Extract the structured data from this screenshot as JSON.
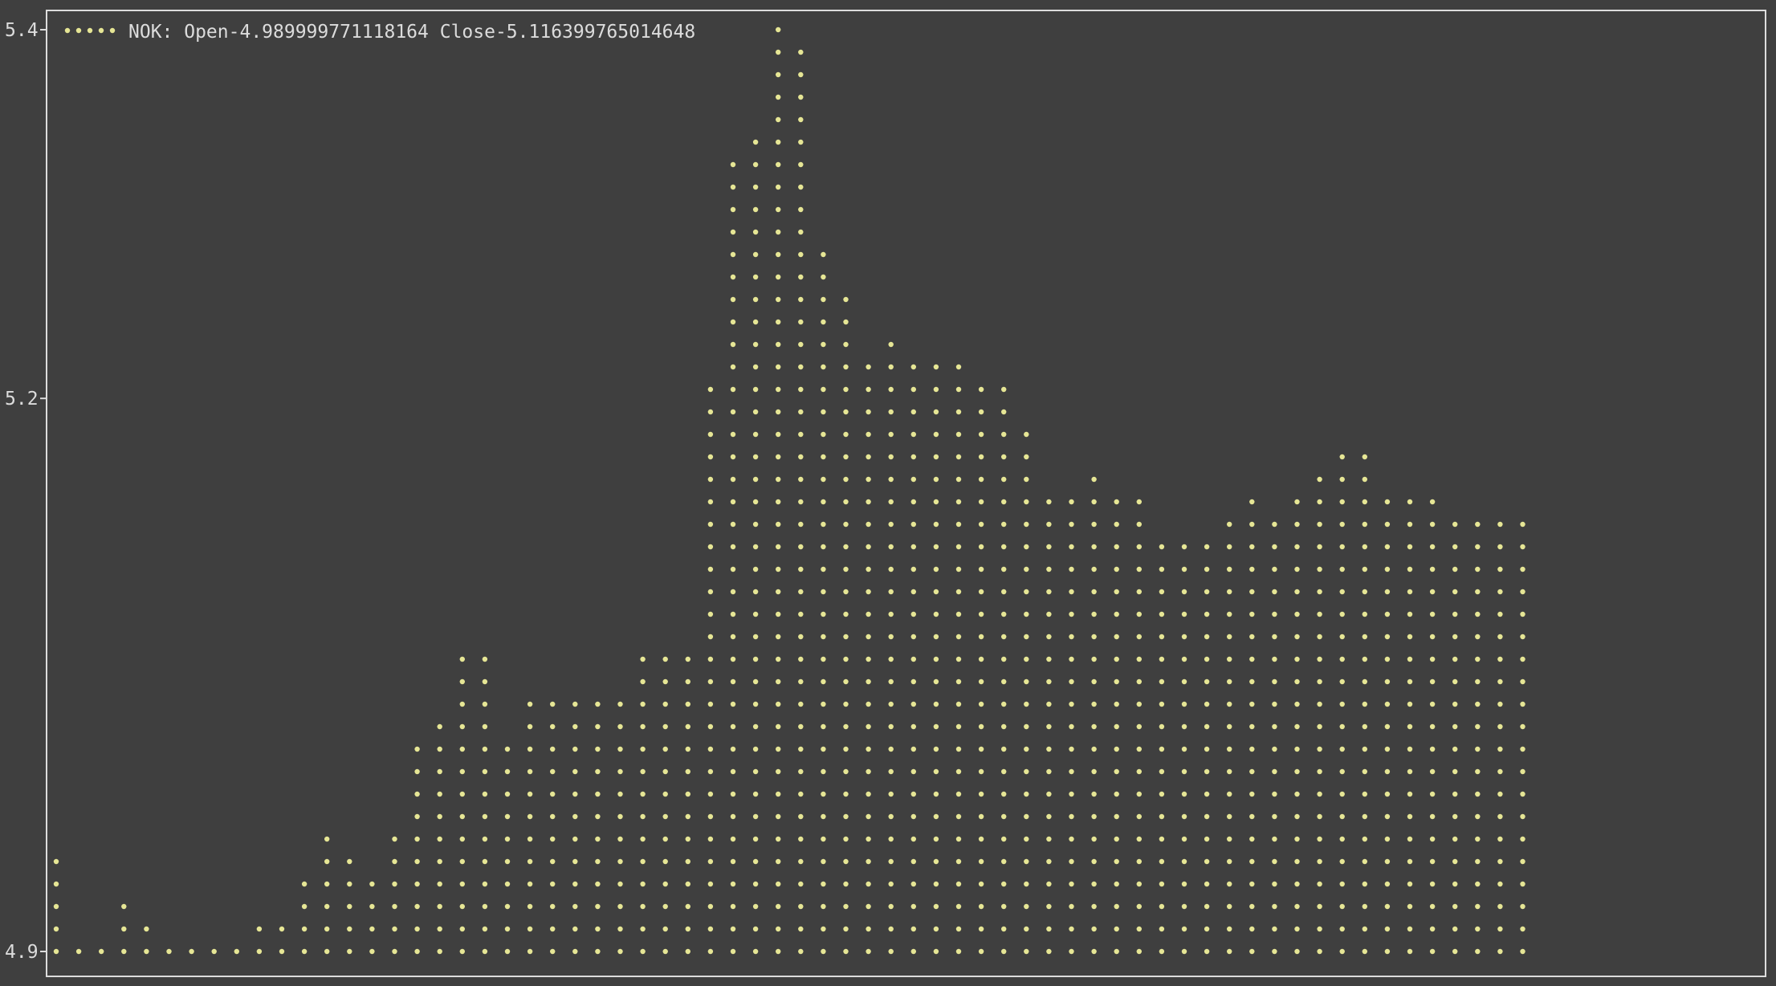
{
  "chart_data": {
    "type": "bar",
    "style": "dotted-terminal",
    "legend": {
      "label": "NOK: Open-4.989999771118164 Close-5.116399765014648",
      "placement": "top-left"
    },
    "title": "",
    "xlabel": "",
    "ylabel": "",
    "ylim": [
      4.9,
      5.4
    ],
    "yticks": [
      {
        "value": 4.9,
        "label": "4.9"
      },
      {
        "value": 5.2,
        "label": "5.2"
      },
      {
        "value": 5.4,
        "label": "5.4"
      }
    ],
    "grid": false,
    "colors": {
      "background": "#3f3f3f",
      "dots": "#e6e695",
      "axis": "#dcdcdc",
      "text": "#dcdcdc"
    },
    "series": [
      {
        "values": [
          4.955,
          4.9,
          4.9,
          4.93,
          4.92,
          4.9,
          4.9,
          4.9,
          4.91,
          4.92,
          4.92,
          4.94,
          4.97,
          4.95,
          4.94,
          4.97,
          5.01,
          5.03,
          5.06,
          5.06,
          5.02,
          5.04,
          5.04,
          5.045,
          5.04,
          5.04,
          5.07,
          5.07,
          5.07,
          5.21,
          5.33,
          5.34,
          5.4,
          5.39,
          5.28,
          5.26,
          5.22,
          5.24,
          5.22,
          5.22,
          5.22,
          5.21,
          5.21,
          5.19,
          5.145,
          5.155,
          5.165,
          5.155,
          5.155,
          5.13,
          5.13,
          5.12,
          5.135,
          5.145,
          5.135,
          5.145,
          5.165,
          5.17,
          5.17,
          5.145,
          5.155,
          5.155,
          5.135,
          5.135,
          5.135,
          5.135
        ]
      }
    ]
  }
}
